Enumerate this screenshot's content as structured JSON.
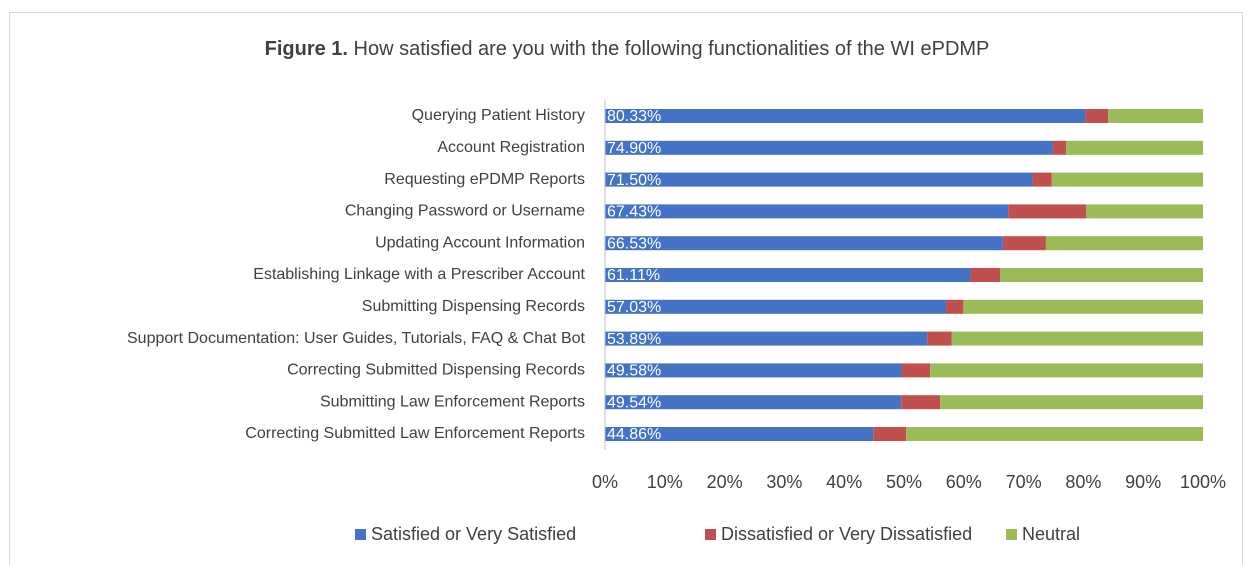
{
  "chart_data": {
    "type": "stacked-bar-horizontal",
    "figure_label": "Figure 1.",
    "title": "How satisfied are you with the following functionalities of the WI ePDMP",
    "categories": [
      "Querying Patient History",
      "Account Registration",
      "Requesting ePDMP Reports",
      "Changing Password or Username",
      "Updating Account Information",
      "Establishing Linkage with a Prescriber Account",
      "Submitting Dispensing Records",
      "Support Documentation: User Guides, Tutorials, FAQ & Chat Bot",
      "Correcting Submitted Dispensing Records",
      "Submitting Law Enforcement Reports",
      "Correcting Submitted Law Enforcement Reports"
    ],
    "series": [
      {
        "name": "Satisfied or Very Satisfied",
        "color": "#4472c4",
        "values": [
          80.33,
          74.9,
          71.5,
          67.43,
          66.53,
          61.11,
          57.03,
          53.89,
          49.58,
          49.54,
          44.86
        ],
        "value_labels": [
          "80.33%",
          "74.90%",
          "71.50%",
          "67.43%",
          "66.53%",
          "61.11%",
          "57.03%",
          "53.89%",
          "49.58%",
          "49.54%",
          "44.86%"
        ]
      },
      {
        "name": "Dissatisfied or Very Dissatisfied",
        "color": "#c0504d",
        "values": [
          3.8,
          2.2,
          3.2,
          13.0,
          7.2,
          5.0,
          2.9,
          4.1,
          4.8,
          6.5,
          5.5
        ]
      },
      {
        "name": "Neutral",
        "color": "#9bbb59",
        "values": [
          15.87,
          22.9,
          25.3,
          19.57,
          26.27,
          33.89,
          40.07,
          42.01,
          45.62,
          43.96,
          49.64
        ]
      }
    ],
    "xlim": [
      0,
      100
    ],
    "xticks": [
      {
        "value": 0,
        "label": "0%"
      },
      {
        "value": 10,
        "label": "10%"
      },
      {
        "value": 20,
        "label": "20%"
      },
      {
        "value": 30,
        "label": "30%"
      },
      {
        "value": 40,
        "label": "40%"
      },
      {
        "value": 50,
        "label": "50%"
      },
      {
        "value": 60,
        "label": "60%"
      },
      {
        "value": 70,
        "label": "70%"
      },
      {
        "value": 80,
        "label": "80%"
      },
      {
        "value": 90,
        "label": "90%"
      },
      {
        "value": 100,
        "label": "100%"
      }
    ],
    "legend": "bottom"
  }
}
